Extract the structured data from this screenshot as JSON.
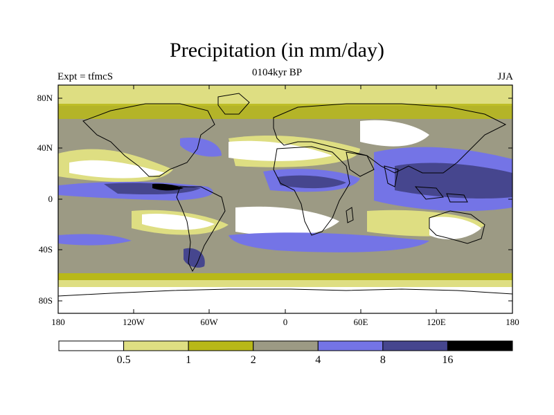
{
  "title": "Precipitation (in mm/day)",
  "subtitle": "0104kyr BP",
  "left_string": "Expt = tfmcS",
  "right_string": "JJA",
  "axes": {
    "lat_labels": [
      "80N",
      "40N",
      "0",
      "40S",
      "80S"
    ],
    "lon_labels": [
      "180",
      "120W",
      "60W",
      "0",
      "60E",
      "120E",
      "180"
    ]
  },
  "colorbar": {
    "colors": [
      "#ffffff",
      "#dede82",
      "#b8b818",
      "#9c9a84",
      "#7474e6",
      "#46468e",
      "#000000"
    ],
    "labels": [
      "0.5",
      "1",
      "2",
      "4",
      "8",
      "16"
    ]
  },
  "legend_levels": [
    0.5,
    1,
    2,
    4,
    8,
    16
  ]
}
